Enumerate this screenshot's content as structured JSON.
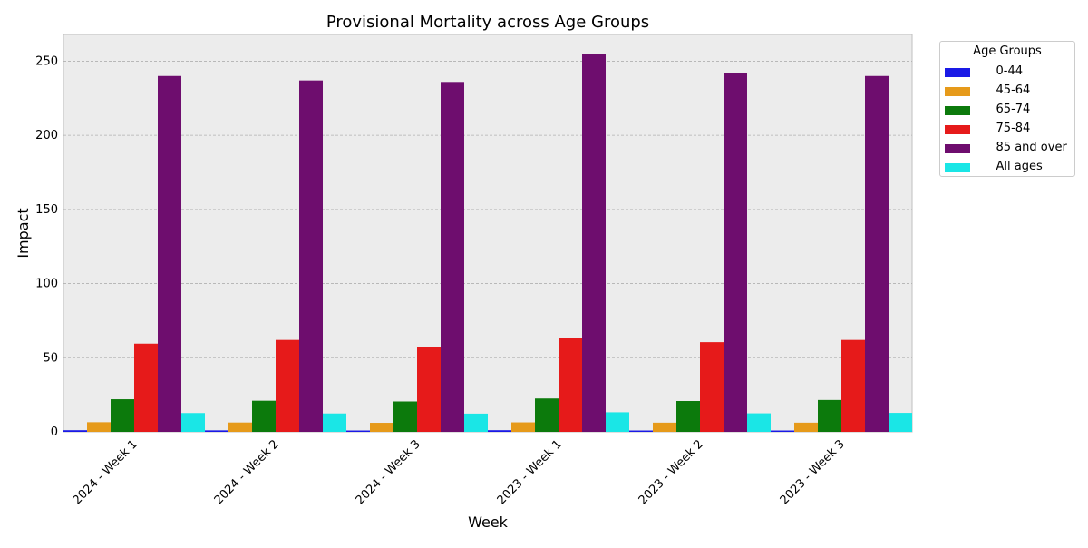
{
  "chart_data": {
    "type": "bar",
    "title": "Provisional Mortality across Age Groups",
    "xlabel": "Week",
    "ylabel": "Impact",
    "categories": [
      "2024 - Week 1",
      "2024 - Week 2",
      "2024 - Week 3",
      "2023 - Week 1",
      "2023 - Week 2",
      "2023 - Week 3"
    ],
    "ylim": [
      0,
      268
    ],
    "yticks": [
      "0",
      "50",
      "100",
      "150",
      "200",
      "250"
    ],
    "grid": "horizontal-dashed",
    "background": "#ececec",
    "legend_title": "Age Groups",
    "legend_position": "outside-top-right",
    "series": [
      {
        "name": "    0-44",
        "color": "#1a1ae6",
        "values": [
          1.1,
          1.0,
          0.9,
          1.1,
          0.9,
          0.9
        ]
      },
      {
        "name": "    45-64",
        "color": "#e69a1a",
        "values": [
          6.5,
          6.3,
          6.1,
          6.4,
          6.2,
          6.2
        ]
      },
      {
        "name": "    65-74",
        "color": "#0c7a0c",
        "values": [
          22.0,
          21.0,
          20.5,
          22.5,
          20.8,
          21.5
        ]
      },
      {
        "name": "    75-84",
        "color": "#e61a1a",
        "values": [
          59.5,
          62.0,
          57.0,
          63.5,
          60.5,
          62.0
        ]
      },
      {
        "name": "    85 and over",
        "color": "#6e0d6e",
        "values": [
          240,
          237,
          236,
          255,
          242,
          240
        ]
      },
      {
        "name": "    All ages",
        "color": "#1ae6e6",
        "values": [
          12.7,
          12.4,
          12.3,
          13.2,
          12.5,
          12.8
        ]
      }
    ]
  }
}
